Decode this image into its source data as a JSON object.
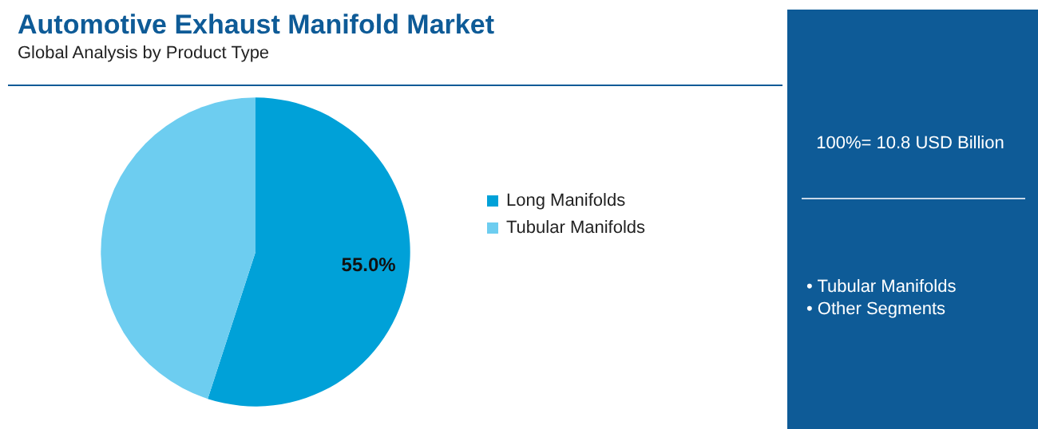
{
  "chart_data": {
    "type": "pie",
    "title": "Automotive Exhaust Manifold Market",
    "subtitle": "Global Analysis by Product Type",
    "categories": [
      "Long Manifolds",
      "Tubular Manifolds"
    ],
    "values": [
      55,
      45
    ],
    "colors": [
      "#00a1d8",
      "#6dcdf0"
    ],
    "value_labels": [
      "55.0%",
      null
    ],
    "legend": "right",
    "annotations": [
      "100%= 10.8 USD Billion",
      "• Tubular Manifolds",
      "• Other Segments"
    ]
  }
}
